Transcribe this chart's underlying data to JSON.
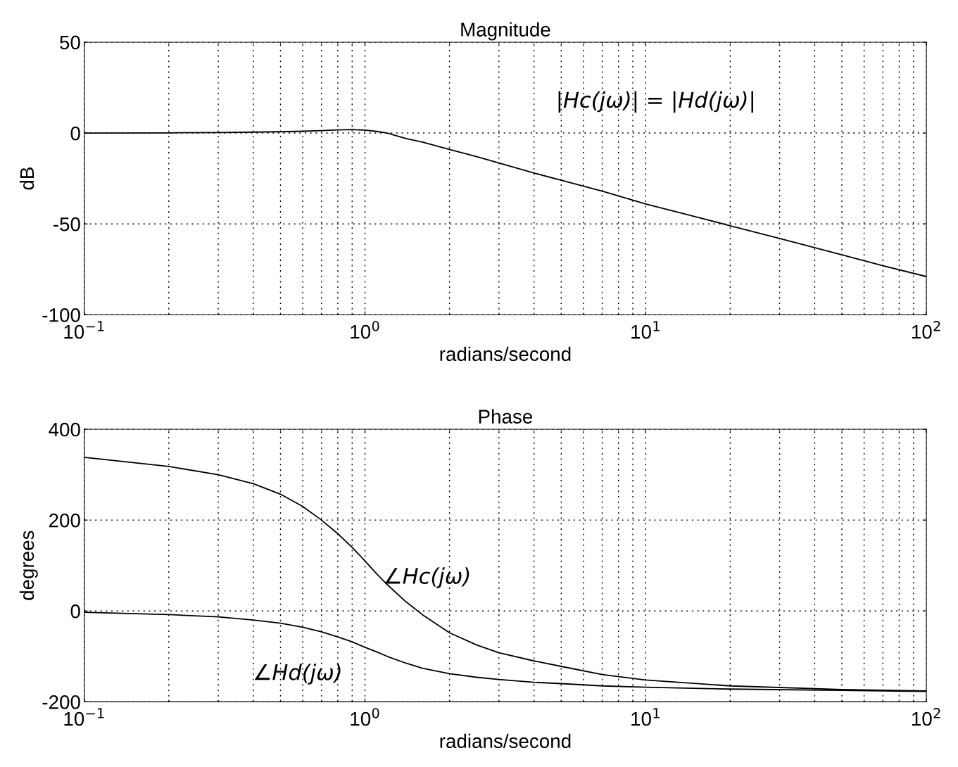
{
  "chart_data": [
    {
      "type": "line",
      "title": "Magnitude",
      "xlabel": "radians/second",
      "ylabel": "dB",
      "log": "x",
      "grid": true,
      "xlim": [
        0.1,
        100
      ],
      "ylim": [
        -100,
        50
      ],
      "xticks": [
        {
          "value": 0.1,
          "label": "10$^{−1}$"
        },
        {
          "value": 1,
          "label": "10$^{0}$"
        },
        {
          "value": 10,
          "label": "10$^{1}$"
        },
        {
          "value": 100,
          "label": "10$^{2}$"
        }
      ],
      "yticks": [
        -100,
        -50,
        0,
        50
      ],
      "series": [
        {
          "color": "#000000",
          "x": [
            0.1,
            0.2,
            0.3,
            0.4,
            0.5,
            0.6,
            0.7,
            0.8,
            0.9,
            1.0,
            1.1,
            1.2,
            1.4,
            1.6,
            2,
            2.5,
            3,
            4,
            5,
            7,
            10,
            15,
            20,
            30,
            50,
            70,
            100
          ],
          "values": [
            0,
            0.1,
            0.3,
            0.5,
            0.7,
            1.0,
            1.3,
            1.7,
            1.9,
            1.6,
            0.9,
            0,
            -3,
            -5,
            -9,
            -13,
            -16.5,
            -22,
            -26,
            -32,
            -39,
            -46,
            -51,
            -58,
            -67,
            -73,
            -79
          ]
        }
      ],
      "annotations": [
        "|Hc(jω)| = |Hd(jω)|"
      ]
    },
    {
      "type": "line",
      "title": "Phase",
      "xlabel": "radians/second",
      "ylabel": "degrees",
      "log": "x",
      "grid": true,
      "xlim": [
        0.1,
        100
      ],
      "ylim": [
        -200,
        400
      ],
      "xticks": [
        {
          "value": 0.1,
          "label": "10$^{−1}$"
        },
        {
          "value": 1,
          "label": "10$^{0}$"
        },
        {
          "value": 10,
          "label": "10$^{1}$"
        },
        {
          "value": 100,
          "label": "10$^{2}$"
        }
      ],
      "yticks": [
        -200,
        0,
        200,
        400
      ],
      "series": [
        {
          "color": "#000000",
          "x": [
            0.1,
            0.2,
            0.3,
            0.4,
            0.5,
            0.6,
            0.7,
            0.8,
            0.9,
            1.0,
            1.1,
            1.2,
            1.4,
            1.6,
            2,
            2.5,
            3,
            4,
            5,
            7,
            10,
            20,
            50,
            100
          ],
          "values": [
            338,
            318,
            300,
            280,
            257,
            230,
            200,
            170,
            140,
            110,
            82,
            58,
            20,
            -8,
            -48,
            -75,
            -92,
            -110,
            -122,
            -140,
            -152,
            -165,
            -173,
            -176
          ]
        },
        {
          "color": "#000000",
          "x": [
            0.1,
            0.2,
            0.3,
            0.4,
            0.5,
            0.6,
            0.7,
            0.8,
            0.9,
            1.0,
            1.1,
            1.2,
            1.4,
            1.6,
            2,
            2.5,
            3,
            4,
            5,
            7,
            10,
            20,
            50,
            100
          ],
          "values": [
            -3,
            -8,
            -13,
            -20,
            -27,
            -36,
            -46,
            -57,
            -68,
            -80,
            -90,
            -100,
            -115,
            -126,
            -138,
            -146,
            -151,
            -157,
            -160,
            -165,
            -168,
            -172,
            -175,
            -177
          ]
        }
      ],
      "annotations": [
        {
          "text": "∠Hc(jω)",
          "x": 1.16,
          "y": 60
        },
        "∠Hd(jω)"
      ]
    }
  ]
}
